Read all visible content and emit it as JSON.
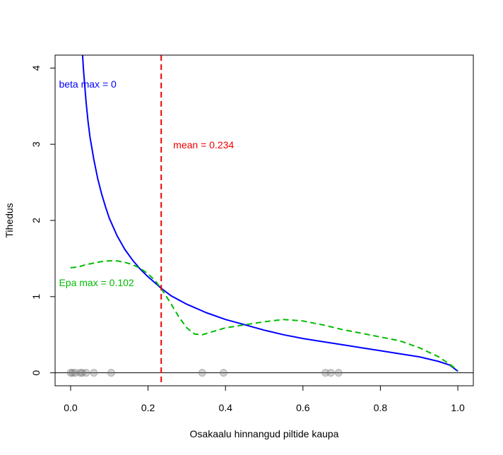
{
  "chart_data": {
    "type": "line",
    "title": "",
    "xlabel": "Osakaalu hinnangud piltide kaupa",
    "ylabel": "Tihedus",
    "xlim": [
      -0.04,
      1.04
    ],
    "ylim": [
      -0.17,
      4.17
    ],
    "x_ticks": [
      0.0,
      0.2,
      0.4,
      0.6,
      0.8,
      1.0
    ],
    "x_tick_labels": [
      "0.0",
      "0.2",
      "0.4",
      "0.6",
      "0.8",
      "1.0"
    ],
    "y_ticks": [
      0,
      1,
      2,
      3,
      4
    ],
    "y_tick_labels": [
      "0",
      "1",
      "2",
      "3",
      "4"
    ],
    "grid": false,
    "colors": {
      "beta": "#0000ff",
      "epa": "#00bb00",
      "mean": "#ee0000",
      "points": "#777777"
    },
    "series": [
      {
        "name": "beta",
        "style": "solid",
        "points": [
          [
            0.031,
            4.17
          ],
          [
            0.033,
            4.0
          ],
          [
            0.036,
            3.8
          ],
          [
            0.04,
            3.55
          ],
          [
            0.045,
            3.3
          ],
          [
            0.05,
            3.1
          ],
          [
            0.06,
            2.8
          ],
          [
            0.07,
            2.55
          ],
          [
            0.08,
            2.35
          ],
          [
            0.09,
            2.18
          ],
          [
            0.1,
            2.03
          ],
          [
            0.12,
            1.8
          ],
          [
            0.14,
            1.62
          ],
          [
            0.16,
            1.48
          ],
          [
            0.18,
            1.36
          ],
          [
            0.2,
            1.26
          ],
          [
            0.234,
            1.11
          ],
          [
            0.26,
            1.01
          ],
          [
            0.3,
            0.9
          ],
          [
            0.35,
            0.79
          ],
          [
            0.4,
            0.7
          ],
          [
            0.45,
            0.63
          ],
          [
            0.5,
            0.56
          ],
          [
            0.55,
            0.5
          ],
          [
            0.6,
            0.45
          ],
          [
            0.65,
            0.41
          ],
          [
            0.7,
            0.37
          ],
          [
            0.75,
            0.33
          ],
          [
            0.8,
            0.29
          ],
          [
            0.85,
            0.25
          ],
          [
            0.9,
            0.21
          ],
          [
            0.95,
            0.15
          ],
          [
            0.98,
            0.1
          ],
          [
            1.0,
            0.02
          ]
        ]
      },
      {
        "name": "Epa",
        "style": "dashed",
        "points": [
          [
            0.0,
            1.38
          ],
          [
            0.02,
            1.39
          ],
          [
            0.04,
            1.42
          ],
          [
            0.06,
            1.44
          ],
          [
            0.08,
            1.46
          ],
          [
            0.1,
            1.47
          ],
          [
            0.12,
            1.47
          ],
          [
            0.14,
            1.45
          ],
          [
            0.16,
            1.42
          ],
          [
            0.18,
            1.37
          ],
          [
            0.2,
            1.3
          ],
          [
            0.22,
            1.2
          ],
          [
            0.24,
            1.06
          ],
          [
            0.26,
            0.9
          ],
          [
            0.28,
            0.73
          ],
          [
            0.3,
            0.59
          ],
          [
            0.32,
            0.51
          ],
          [
            0.34,
            0.5
          ],
          [
            0.36,
            0.53
          ],
          [
            0.38,
            0.56
          ],
          [
            0.4,
            0.59
          ],
          [
            0.45,
            0.63
          ],
          [
            0.5,
            0.67
          ],
          [
            0.55,
            0.7
          ],
          [
            0.6,
            0.68
          ],
          [
            0.65,
            0.63
          ],
          [
            0.7,
            0.57
          ],
          [
            0.75,
            0.52
          ],
          [
            0.8,
            0.47
          ],
          [
            0.85,
            0.42
          ],
          [
            0.9,
            0.33
          ],
          [
            0.95,
            0.21
          ],
          [
            0.98,
            0.11
          ],
          [
            1.0,
            0.03
          ]
        ]
      }
    ],
    "mean_line": {
      "x": 0.234,
      "label": "mean = 0.234"
    },
    "baseline_y": 0,
    "observations": [
      0.0,
      0.005,
      0.012,
      0.025,
      0.03,
      0.04,
      0.06,
      0.105,
      0.34,
      0.395,
      0.658,
      0.672,
      0.692
    ],
    "annotations": [
      {
        "key": "beta_max",
        "text": "beta max = 0",
        "x": -0.03,
        "y": 3.78,
        "color": "#0000ff"
      },
      {
        "key": "mean",
        "text": "mean = 0.234",
        "x": 0.265,
        "y": 2.98,
        "color": "#ee0000"
      },
      {
        "key": "epa_max",
        "text": "Epa max = 0.102",
        "x": -0.03,
        "y": 1.17,
        "color": "#00bb00"
      }
    ]
  }
}
